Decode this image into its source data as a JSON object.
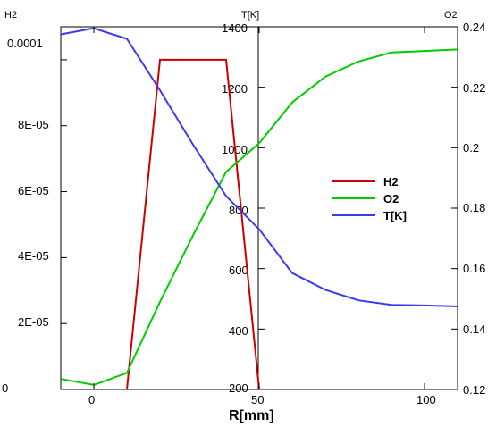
{
  "chart_data": {
    "type": "line",
    "xlabel": "R[mm]",
    "xlim": [
      -10,
      110
    ],
    "x_ticks": [
      "0",
      "50",
      "100"
    ],
    "axes": {
      "left": {
        "title": "H2",
        "ylim": [
          0,
          0.00011
        ],
        "ticks": [
          "0",
          "2E-05",
          "4E-05",
          "6E-05",
          "8E-05",
          "0.0001"
        ]
      },
      "middle": {
        "title": "T[K]",
        "ylim": [
          200,
          1400
        ],
        "ticks": [
          "200",
          "400",
          "600",
          "800",
          "1000",
          "1200",
          "1400"
        ]
      },
      "right": {
        "title": "O2",
        "ylim": [
          0.12,
          0.24
        ],
        "ticks": [
          "0.12",
          "0.14",
          "0.16",
          "0.18",
          "0.2",
          "0.22",
          "0.24"
        ]
      }
    },
    "series": [
      {
        "name": "H2",
        "axis": "left",
        "color": "#cc0000",
        "x": [
          10,
          20,
          30,
          40,
          50
        ],
        "y": [
          0,
          0.0001,
          0.0001,
          0.0001,
          0
        ]
      },
      {
        "name": "O2",
        "axis": "right",
        "color": "#00cc00",
        "x": [
          -10,
          0,
          10,
          20,
          30,
          40,
          50,
          60,
          70,
          80,
          90,
          100,
          110
        ],
        "y": [
          0.1235,
          0.1215,
          0.1255,
          0.149,
          0.171,
          0.192,
          0.2015,
          0.215,
          0.2235,
          0.2285,
          0.2315,
          0.232,
          0.2325
        ]
      },
      {
        "name": "T[K]",
        "axis": "middle",
        "color": "#3a3aee",
        "x": [
          -10,
          0,
          10,
          20,
          30,
          40,
          50,
          60,
          70,
          80,
          90,
          100,
          110
        ],
        "y": [
          1375,
          1395,
          1360,
          1190,
          1010,
          840,
          730,
          585,
          530,
          495,
          480,
          478,
          475
        ]
      }
    ],
    "legend": {
      "position": "center-right",
      "entries": [
        "H2",
        "O2",
        "T[K]"
      ]
    },
    "grid": false
  }
}
